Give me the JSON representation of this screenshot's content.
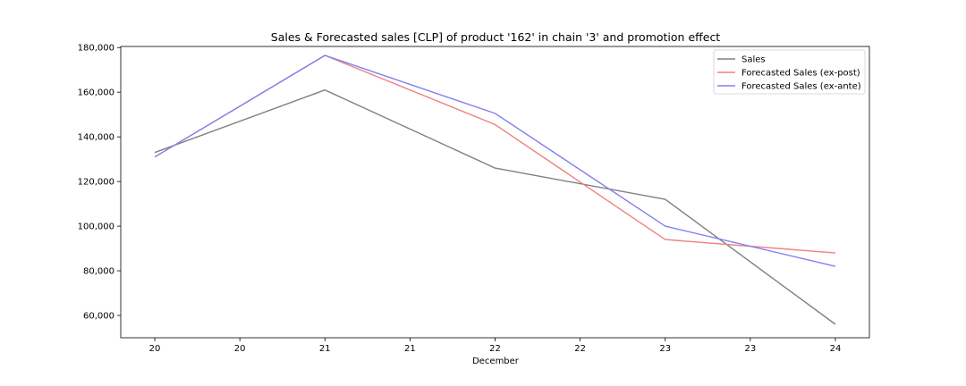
{
  "chart_data": {
    "type": "line",
    "title": "Sales & Forecasted sales [CLP] of product '162' in chain '3' and promotion effect",
    "xlabel": "December",
    "ylabel": "",
    "x": [
      20,
      21,
      22,
      23,
      24
    ],
    "x_tick_labels": [
      "20",
      "20",
      "21",
      "21",
      "22",
      "22",
      "23",
      "23",
      "24"
    ],
    "x_tick_values": [
      20,
      20.5,
      21,
      21.5,
      22,
      22.5,
      23,
      23.5,
      24
    ],
    "xlim": [
      19.8,
      24.2
    ],
    "ylim": [
      50000,
      180500
    ],
    "y_ticks": [
      60000,
      80000,
      100000,
      120000,
      140000,
      160000,
      180000
    ],
    "y_tick_labels": [
      "60,000",
      "80,000",
      "100,000",
      "120,000",
      "140,000",
      "160,000",
      "180,000"
    ],
    "grid": false,
    "legend_position": "top-right",
    "series": [
      {
        "name": "Sales",
        "color": "#808080",
        "values": [
          133000,
          161000,
          126000,
          112000,
          56000
        ]
      },
      {
        "name": "Forecasted Sales (ex-post)",
        "color": "#f08080",
        "values": [
          131000,
          176500,
          145500,
          94000,
          88000
        ]
      },
      {
        "name": "Forecasted Sales (ex-ante)",
        "color": "#8080f0",
        "values": [
          131000,
          176500,
          150500,
          100000,
          82000
        ]
      }
    ]
  }
}
